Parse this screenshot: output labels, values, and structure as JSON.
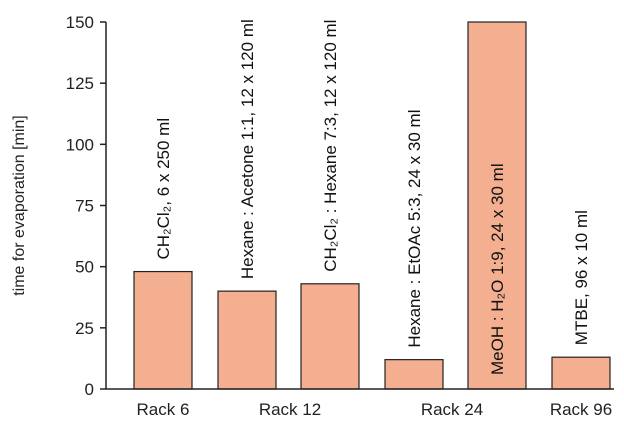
{
  "chart_data": {
    "type": "bar",
    "ylabel": "time for evaporation [min]",
    "xlabel": "",
    "ylim": [
      0,
      150
    ],
    "yticks": [
      0,
      25,
      50,
      75,
      100,
      125,
      150
    ],
    "bar_color": "#f4ae90",
    "bars": [
      {
        "value": 48,
        "label": "CH₂Cl₂, 6 x 250 ml"
      },
      {
        "value": 40,
        "label": "Hexane : Acetone 1:1, 12 x 120 ml"
      },
      {
        "value": 43,
        "label": "CH₂Cl₂ : Hexane 7:3, 12 x 120 ml"
      },
      {
        "value": 12,
        "label": "Hexane : EtOAc 5:3, 24 x 30 ml"
      },
      {
        "value": 150,
        "label": "MeOH : H₂O 1:9, 24 x 30 ml"
      },
      {
        "value": 13,
        "label": "MTBE, 96 x 10 ml"
      }
    ],
    "groups": [
      {
        "label": "Rack 6",
        "bars": [
          0
        ]
      },
      {
        "label": "Rack 12",
        "bars": [
          1,
          2
        ]
      },
      {
        "label": "Rack 24",
        "bars": [
          3,
          4
        ]
      },
      {
        "label": "Rack 96",
        "bars": [
          5
        ]
      }
    ]
  }
}
